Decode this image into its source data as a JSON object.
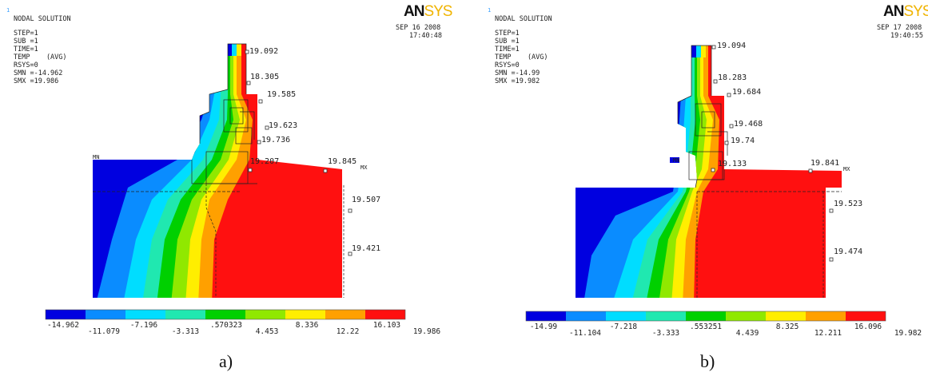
{
  "colors": [
    "#0000e0",
    "#0a8cff",
    "#00ddff",
    "#20e8b0",
    "#00d000",
    "#90e800",
    "#ffee00",
    "#ffa000",
    "#ff1010"
  ],
  "panels": [
    {
      "id": "a",
      "index_mark": "1",
      "title": "NODAL SOLUTION",
      "info": [
        "STEP=1",
        "SUB =1",
        "TIME=1",
        "TEMP    (AVG)",
        "RSYS=0",
        "SMN =-14.962",
        "SMX =19.986"
      ],
      "logo_an": "AN",
      "logo_sys": "SYS",
      "date": "SEP 16 2008",
      "time": "17:40:48",
      "mn_label": "MN",
      "mx_label": "MX",
      "values": [
        "19.092",
        "18.305",
        "19.585",
        "19.623",
        "19.736",
        "19.207",
        "19.845",
        "19.507",
        "19.421"
      ],
      "legend_top": [
        "-14.962",
        "-7.196",
        ".570323",
        "8.336",
        "16.103"
      ],
      "legend_bottom": [
        "-11.079",
        "-3.313",
        "4.453",
        "12.22",
        "19.986"
      ],
      "caption": "a)"
    },
    {
      "id": "b",
      "index_mark": "1",
      "title": "NODAL SOLUTION",
      "info": [
        "STEP=1",
        "SUB =1",
        "TIME=1",
        "TEMP    (AVG)",
        "RSYS=0",
        "SMN =-14.99",
        "SMX =19.982"
      ],
      "logo_an": "AN",
      "logo_sys": "SYS",
      "date": "SEP 17 2008",
      "time": "19:40:55",
      "mn_label": "MN",
      "mx_label": "MX",
      "values": [
        "19.094",
        "18.283",
        "19.684",
        "19.468",
        "19.74",
        "19.133",
        "19.841",
        "19.523",
        "19.474"
      ],
      "legend_top": [
        "-14.99",
        "-7.218",
        ".553251",
        "8.325",
        "16.096"
      ],
      "legend_bottom": [
        "-11.104",
        "-3.333",
        "4.439",
        "12.211",
        "19.982"
      ],
      "caption": "b)"
    }
  ]
}
